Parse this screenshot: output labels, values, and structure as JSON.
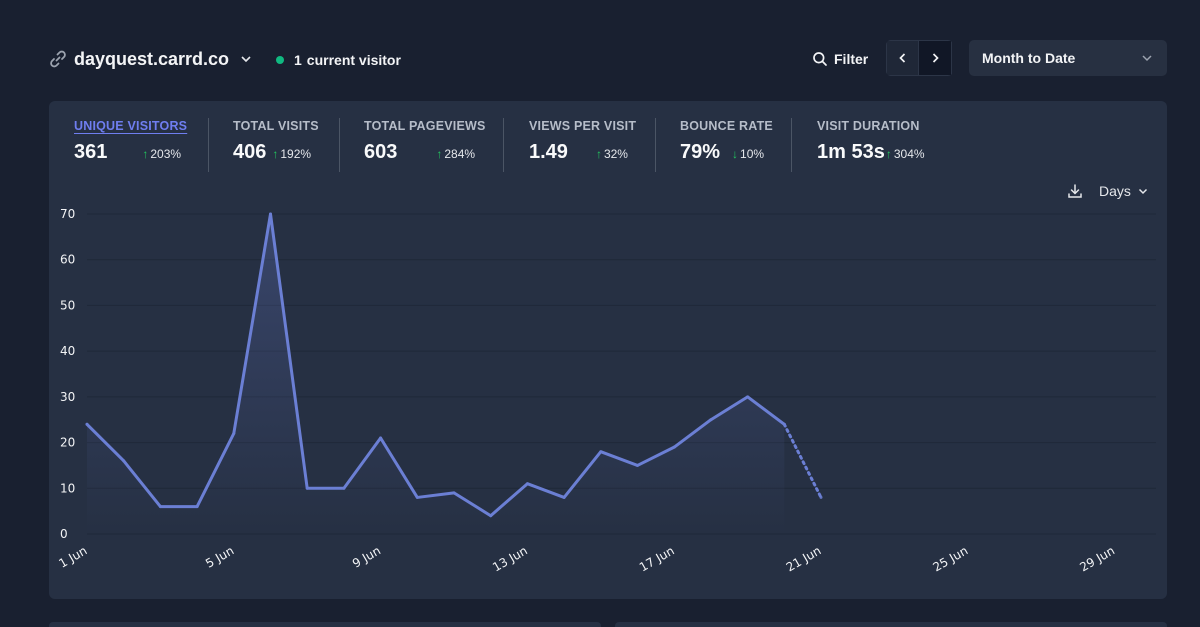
{
  "header": {
    "site_name": "dayquest.carrd.co",
    "visitor_count": "1",
    "visitor_label": "current visitor",
    "filter_label": "Filter",
    "date_range": "Month to Date"
  },
  "stats": [
    {
      "label": "UNIQUE VISITORS",
      "value": "361",
      "change": "203%",
      "direction": "up"
    },
    {
      "label": "TOTAL VISITS",
      "value": "406",
      "change": "192%",
      "direction": "up"
    },
    {
      "label": "TOTAL PAGEVIEWS",
      "value": "603",
      "change": "284%",
      "direction": "up"
    },
    {
      "label": "VIEWS PER VISIT",
      "value": "1.49",
      "change": "32%",
      "direction": "up"
    },
    {
      "label": "BOUNCE RATE",
      "value": "79%",
      "change": "10%",
      "direction": "down"
    },
    {
      "label": "VISIT DURATION",
      "value": "1m 53s",
      "change": "304%",
      "direction": "up"
    }
  ],
  "interval_label": "Days",
  "colors": {
    "line": "#6b7fd4",
    "accent": "#6f7ef0",
    "positive": "#22c55e",
    "live_dot": "#10b981"
  },
  "chart_data": {
    "type": "line",
    "title": "Unique visitors",
    "xlabel": "",
    "ylabel": "",
    "x_ticks": [
      "1 Jun",
      "5 Jun",
      "9 Jun",
      "13 Jun",
      "17 Jun",
      "21 Jun",
      "25 Jun",
      "29 Jun"
    ],
    "y_ticks": [
      0,
      10,
      20,
      30,
      40,
      50,
      60,
      70
    ],
    "ylim": [
      0,
      70
    ],
    "xlim": [
      1,
      30
    ],
    "series": [
      {
        "name": "Unique visitors",
        "x": [
          1,
          2,
          3,
          4,
          5,
          6,
          7,
          8,
          9,
          10,
          11,
          12,
          13,
          14,
          15,
          16,
          17,
          18,
          19,
          20,
          21
        ],
        "values": [
          24,
          16,
          6,
          6,
          22,
          70,
          10,
          10,
          21,
          8,
          9,
          4,
          11,
          8,
          18,
          15,
          19,
          25,
          30,
          24,
          8
        ],
        "incomplete_from_x": 20
      }
    ],
    "grid": true
  }
}
